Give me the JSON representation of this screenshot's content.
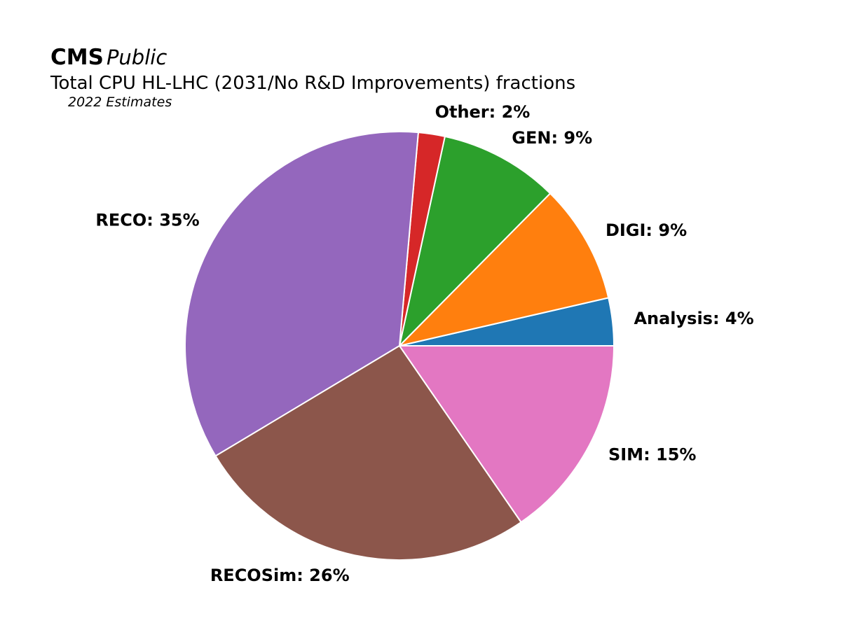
{
  "header": {
    "brand_bold": "CMS",
    "brand_italic": "Public",
    "title": "Total CPU HL-LHC (2031/No R&D Improvements) fractions",
    "subtitle": "2022 Estimates"
  },
  "chart_data": {
    "type": "pie",
    "title": "Total CPU HL-LHC (2031/No R&D Improvements) fractions",
    "subtitle": "2022 Estimates",
    "start_angle_deg": 0,
    "direction": "counterclockwise",
    "slices": [
      {
        "name": "Analysis",
        "value": 3.6,
        "label": "Analysis: 4%",
        "color": "#1f77b4"
      },
      {
        "name": "DIGI",
        "value": 9.0,
        "label": "DIGI: 9%",
        "color": "#ff7f0e"
      },
      {
        "name": "GEN",
        "value": 9.0,
        "label": "GEN: 9%",
        "color": "#2ca02c"
      },
      {
        "name": "Other",
        "value": 2.0,
        "label": "Other: 2%",
        "color": "#d62728"
      },
      {
        "name": "RECO",
        "value": 35.0,
        "label": "RECO: 35%",
        "color": "#9467bd"
      },
      {
        "name": "RECOSim",
        "value": 26.0,
        "label": "RECOSim: 26%",
        "color": "#8c564b"
      },
      {
        "name": "SIM",
        "value": 15.4,
        "label": "SIM: 15%",
        "color": "#e377c2"
      }
    ]
  }
}
